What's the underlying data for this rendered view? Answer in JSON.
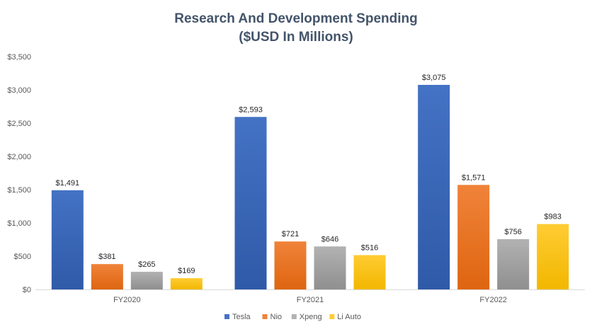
{
  "chart_data": {
    "type": "bar",
    "title": "Research And Development Spending",
    "subtitle": "($USD In Millions)",
    "xlabel": "",
    "ylabel": "",
    "categories": [
      "FY2020",
      "FY2021",
      "FY2022"
    ],
    "series": [
      {
        "name": "Tesla",
        "values": [
          1491,
          2593,
          3075
        ],
        "labels": [
          "$1,491",
          "$2,593",
          "$3,075"
        ],
        "color": "#4472c4",
        "color_dark": "#2f5aa8"
      },
      {
        "name": "Nio",
        "values": [
          381,
          721,
          1571
        ],
        "labels": [
          "$381",
          "$721",
          "$1,571"
        ],
        "color": "#f0833a",
        "color_dark": "#de6510"
      },
      {
        "name": "Xpeng",
        "values": [
          265,
          646,
          756
        ],
        "labels": [
          "$265",
          "$646",
          "$756"
        ],
        "color": "#b2b2b2",
        "color_dark": "#8f8f8f"
      },
      {
        "name": "Li Auto",
        "values": [
          169,
          516,
          983
        ],
        "labels": [
          "$169",
          "$516",
          "$983"
        ],
        "color": "#ffcc33",
        "color_dark": "#f2b700"
      }
    ],
    "ylim": [
      0,
      3500
    ],
    "yticks": [
      0,
      500,
      1000,
      1500,
      2000,
      2500,
      3000,
      3500
    ],
    "ytick_labels": [
      "$0",
      "$500",
      "$1,000",
      "$1,500",
      "$2,000",
      "$2,500",
      "$3,000",
      "$3,500"
    ],
    "grid": false,
    "legend_position": "bottom"
  }
}
